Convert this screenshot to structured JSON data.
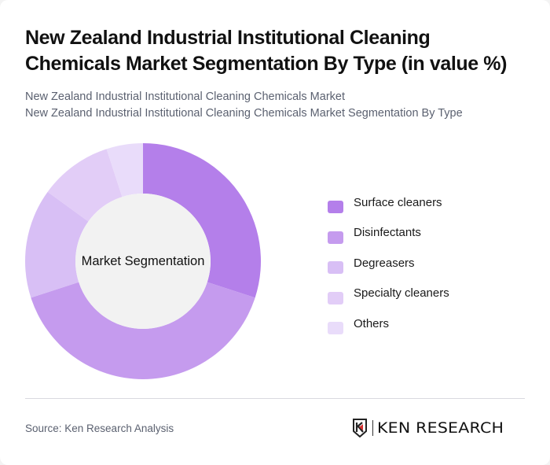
{
  "header": {
    "title": "New Zealand Industrial Institutional Cleaning Chemicals Market Segmentation By Type (in value %)",
    "subtitle_lines": [
      "New Zealand Industrial Institutional Cleaning Chemicals Market",
      "New Zealand Industrial Institutional Cleaning Chemicals Market Segmentation By Type"
    ]
  },
  "chart": {
    "center_label": "Market Segmentation"
  },
  "legend": {
    "items": [
      {
        "label": "Surface cleaners",
        "color": "#b47fea"
      },
      {
        "label": "Disinfectants",
        "color": "#c59bee"
      },
      {
        "label": "Degreasers",
        "color": "#d8bff5"
      },
      {
        "label": "Specialty cleaners",
        "color": "#e2cdf7"
      },
      {
        "label": "Others",
        "color": "#e9dcfa"
      }
    ]
  },
  "footer": {
    "source": "Source: Ken Research Analysis",
    "logo_text": "KEN RESEARCH"
  },
  "chart_data": {
    "type": "pie",
    "subtype": "donut",
    "title": "New Zealand Industrial Institutional Cleaning Chemicals Market Segmentation By Type (in value %)",
    "center_label": "Market Segmentation",
    "categories": [
      "Surface cleaners",
      "Disinfectants",
      "Degreasers",
      "Specialty cleaners",
      "Others"
    ],
    "values": [
      30,
      40,
      15,
      10,
      5
    ],
    "colors": [
      "#b47fea",
      "#c59bee",
      "#d8bff5",
      "#e2cdf7",
      "#e9dcfa"
    ],
    "unit": "%",
    "start_angle": "12 o'clock, clockwise",
    "legend_position": "right"
  }
}
